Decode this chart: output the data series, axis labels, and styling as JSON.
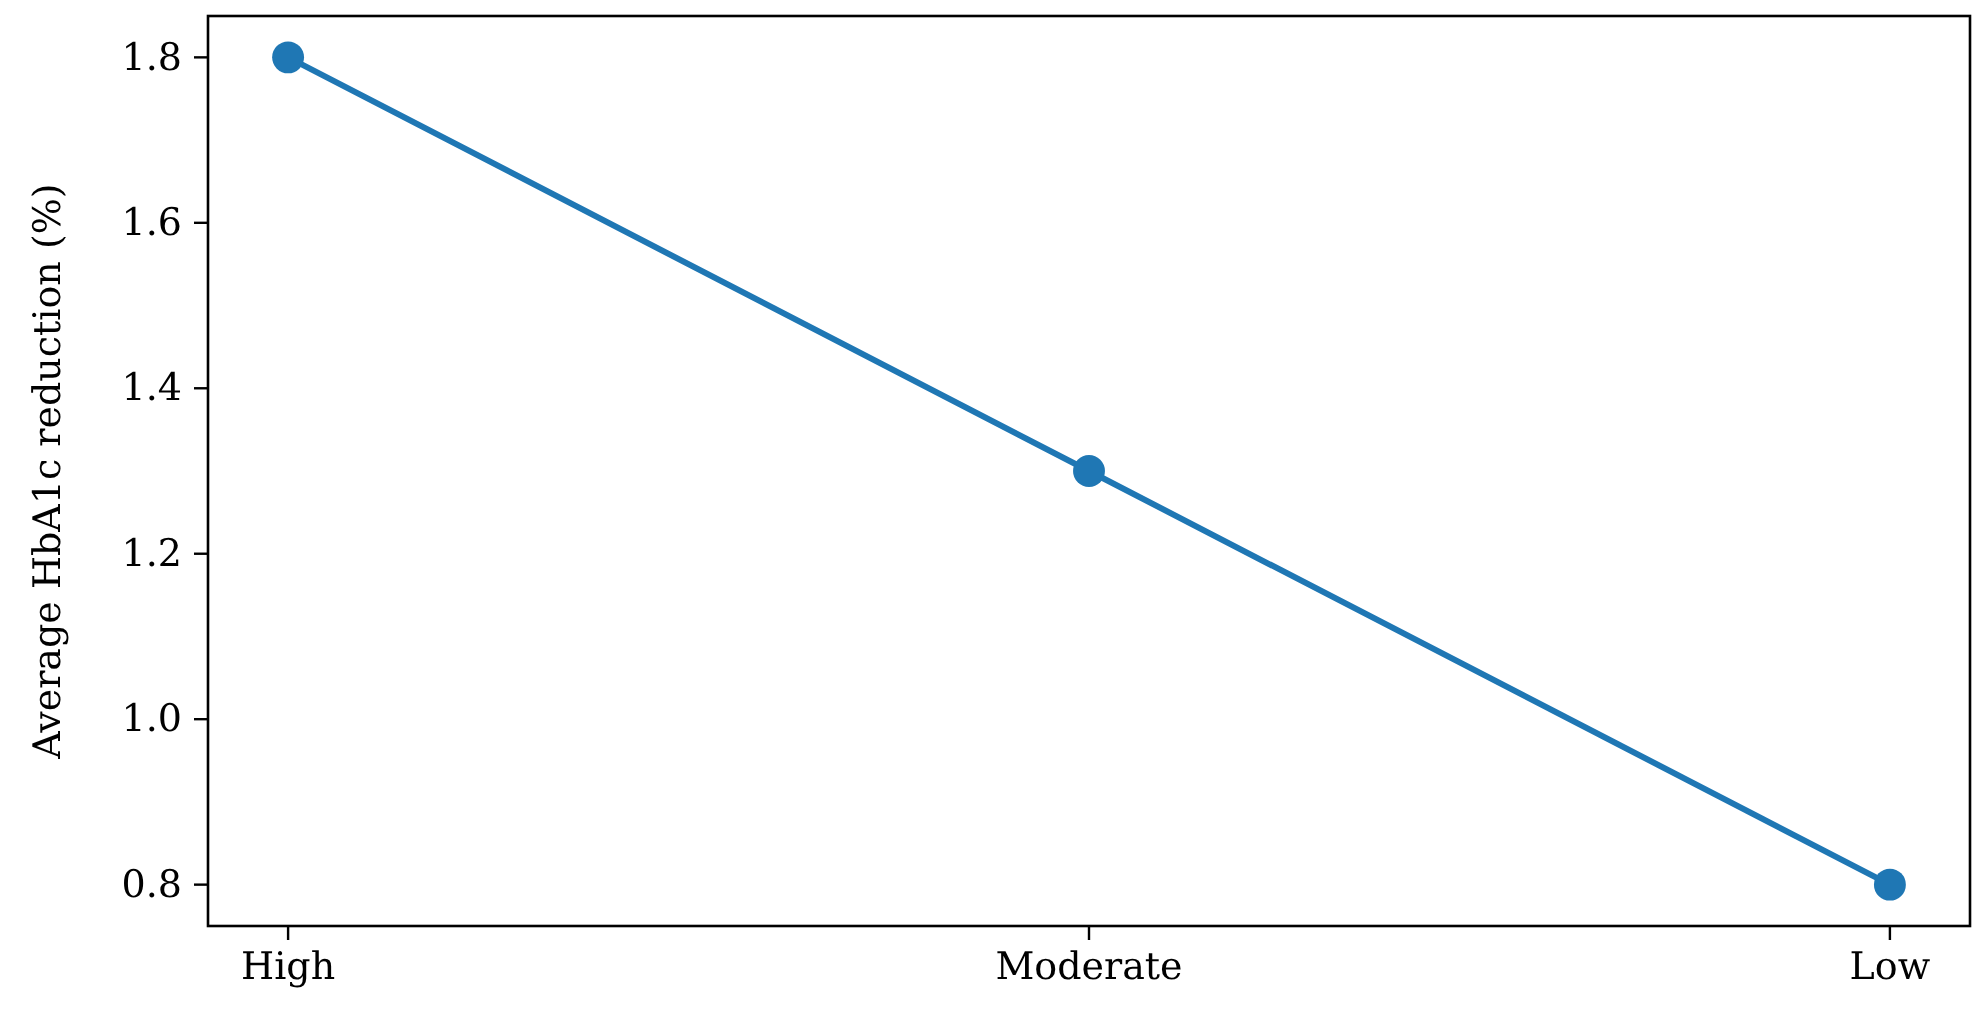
{
  "chart_data": {
    "type": "line",
    "ylabel": "Average HbA1c reduction (%)",
    "categories": [
      "High",
      "Moderate",
      "Low"
    ],
    "series": [
      {
        "color": "#1f77b4",
        "values": [
          1.8,
          1.3,
          0.8
        ]
      }
    ],
    "ylim": [
      0.75,
      1.85
    ],
    "yticks": [
      {
        "value": 0.8,
        "label": "0.8"
      },
      {
        "value": 1.0,
        "label": "1.0"
      },
      {
        "value": 1.2,
        "label": "1.2"
      },
      {
        "value": 1.4,
        "label": "1.4"
      },
      {
        "value": 1.6,
        "label": "1.6"
      },
      {
        "value": 1.8,
        "label": "1.8"
      }
    ],
    "grid": false,
    "marker": "circle",
    "line_style": "solid"
  }
}
